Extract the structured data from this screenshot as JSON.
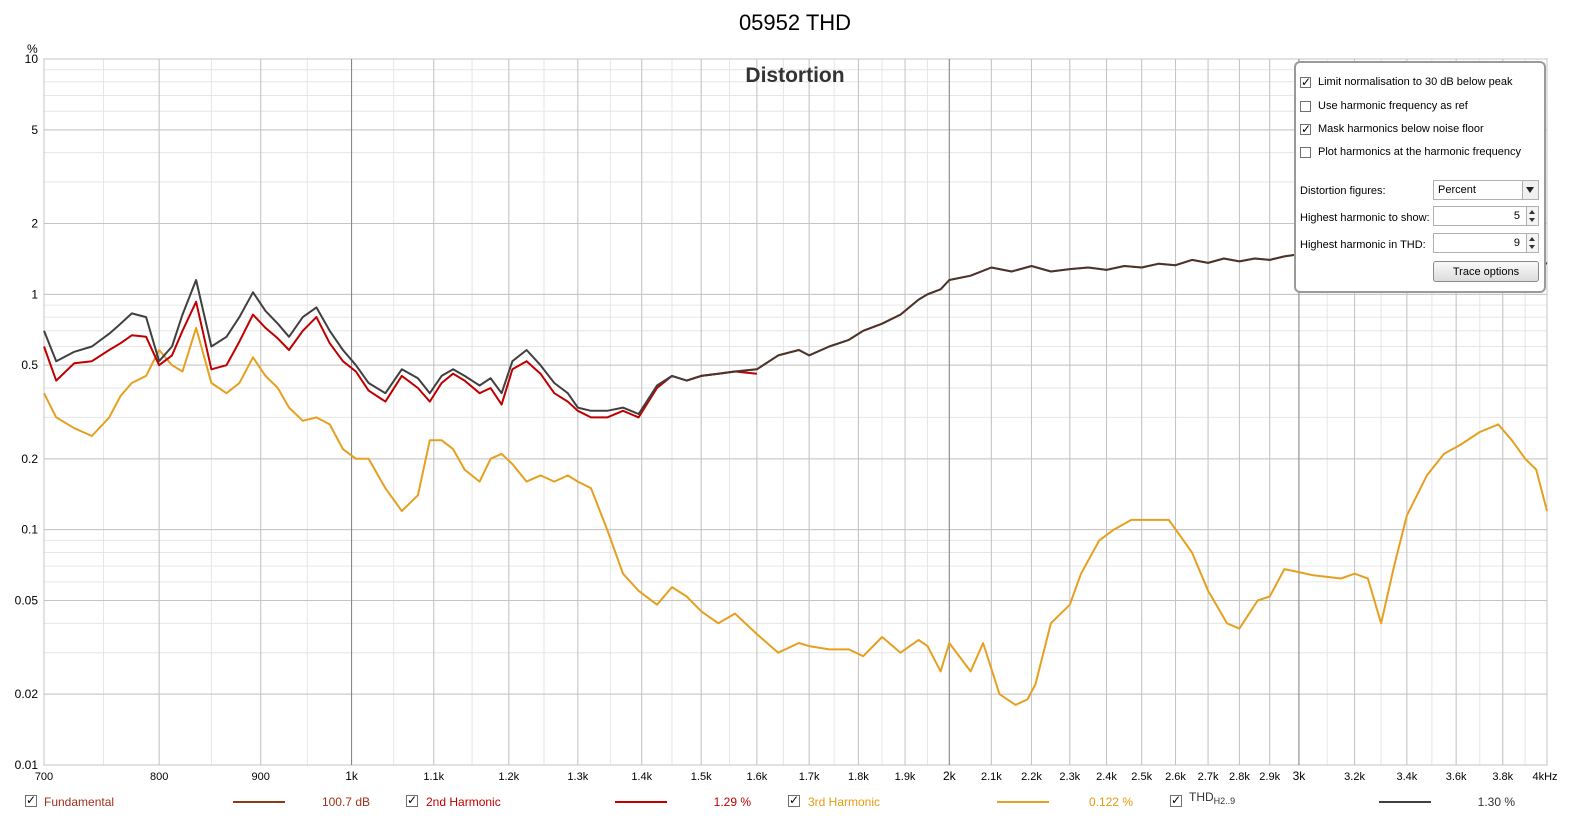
{
  "window_title": "05952 THD",
  "chart_data": {
    "type": "line",
    "title": "Distortion",
    "y_unit": "%",
    "y_scale": "log",
    "ylim": [
      0.01,
      10
    ],
    "y_ticks": [
      10,
      5,
      2,
      1,
      0.5,
      0.2,
      0.1,
      0.05,
      0.02,
      0.01
    ],
    "y_tick_labels": [
      "10",
      "5",
      "2",
      "1",
      "0.5",
      "0.2",
      "0.1",
      "0.05",
      "0.02",
      "0.01"
    ],
    "x_scale": "log",
    "xlim": [
      700,
      4000
    ],
    "x_ticks": [
      700,
      800,
      900,
      1000,
      1100,
      1200,
      1300,
      1400,
      1500,
      1600,
      1700,
      1800,
      1900,
      2000,
      2100,
      2200,
      2300,
      2400,
      2500,
      2600,
      2700,
      2800,
      2900,
      3000,
      3200,
      3400,
      3600,
      3800,
      4000
    ],
    "x_tick_labels": [
      "700",
      "800",
      "900",
      "1k",
      "1.1k",
      "1.2k",
      "1.3k",
      "1.4k",
      "1.5k",
      "1.6k",
      "1.7k",
      "1.8k",
      "1.9k",
      "2k",
      "2.1k",
      "2.2k",
      "2.3k",
      "2.4k",
      "2.5k",
      "2.6k",
      "2.7k",
      "2.8k",
      "2.9k",
      "3k",
      "3.2k",
      "3.4k",
      "3.6k",
      "3.8k",
      "4kHz"
    ],
    "grid": true,
    "series": [
      {
        "name": "3rd Harmonic",
        "color": "#e6a020",
        "x": [
          700,
          710,
          725,
          740,
          755,
          765,
          775,
          788,
          800,
          812,
          822,
          835,
          850,
          865,
          878,
          892,
          905,
          918,
          930,
          945,
          960,
          975,
          990,
          1005,
          1020,
          1040,
          1060,
          1080,
          1095,
          1110,
          1125,
          1140,
          1160,
          1175,
          1190,
          1205,
          1225,
          1245,
          1265,
          1285,
          1300,
          1320,
          1345,
          1370,
          1395,
          1425,
          1450,
          1475,
          1500,
          1530,
          1560,
          1600,
          1640,
          1680,
          1700,
          1740,
          1780,
          1810,
          1850,
          1890,
          1930,
          1950,
          1980,
          2000,
          2050,
          2080,
          2120,
          2160,
          2190,
          2210,
          2250,
          2300,
          2330,
          2380,
          2420,
          2470,
          2520,
          2580,
          2650,
          2700,
          2760,
          2800,
          2860,
          2900,
          2950,
          3000,
          3050,
          3100,
          3150,
          3200,
          3250,
          3300,
          3350,
          3400,
          3480,
          3550,
          3620,
          3700,
          3780,
          3840,
          3900,
          3950,
          4000
        ],
        "values": [
          0.38,
          0.3,
          0.27,
          0.25,
          0.3,
          0.37,
          0.42,
          0.45,
          0.58,
          0.5,
          0.47,
          0.72,
          0.42,
          0.38,
          0.42,
          0.54,
          0.45,
          0.4,
          0.33,
          0.29,
          0.3,
          0.28,
          0.22,
          0.2,
          0.2,
          0.15,
          0.12,
          0.14,
          0.24,
          0.24,
          0.22,
          0.18,
          0.16,
          0.2,
          0.21,
          0.19,
          0.16,
          0.17,
          0.16,
          0.17,
          0.16,
          0.15,
          0.1,
          0.065,
          0.055,
          0.048,
          0.057,
          0.052,
          0.045,
          0.04,
          0.044,
          0.036,
          0.03,
          0.033,
          0.032,
          0.031,
          0.031,
          0.029,
          0.035,
          0.03,
          0.034,
          0.032,
          0.025,
          0.033,
          0.025,
          0.033,
          0.02,
          0.018,
          0.019,
          0.022,
          0.04,
          0.048,
          0.065,
          0.09,
          0.1,
          0.11,
          0.11,
          0.11,
          0.08,
          0.055,
          0.04,
          0.038,
          0.05,
          0.052,
          0.068,
          0.066,
          0.064,
          0.063,
          0.062,
          0.065,
          0.062,
          0.04,
          0.07,
          0.115,
          0.17,
          0.21,
          0.23,
          0.26,
          0.28,
          0.24,
          0.2,
          0.18,
          0.12
        ]
      },
      {
        "name": "2nd Harmonic",
        "color": "#c00000",
        "x": [
          700,
          710,
          725,
          740,
          755,
          765,
          775,
          788,
          800,
          812,
          822,
          835,
          850,
          865,
          878,
          892,
          905,
          918,
          930,
          945,
          960,
          975,
          990,
          1005,
          1020,
          1040,
          1060,
          1080,
          1095,
          1110,
          1125,
          1140,
          1160,
          1175,
          1190,
          1205,
          1225,
          1245,
          1265,
          1285,
          1300,
          1320,
          1345,
          1370,
          1395,
          1425,
          1450,
          1475,
          1500,
          1530,
          1560,
          1600
        ],
        "values": [
          0.6,
          0.43,
          0.51,
          0.52,
          0.58,
          0.62,
          0.67,
          0.66,
          0.5,
          0.55,
          0.7,
          0.93,
          0.48,
          0.5,
          0.63,
          0.82,
          0.72,
          0.65,
          0.58,
          0.7,
          0.8,
          0.62,
          0.52,
          0.47,
          0.39,
          0.35,
          0.45,
          0.4,
          0.35,
          0.42,
          0.46,
          0.43,
          0.38,
          0.4,
          0.34,
          0.48,
          0.52,
          0.46,
          0.38,
          0.35,
          0.32,
          0.3,
          0.3,
          0.32,
          0.3,
          0.4,
          0.45,
          0.43,
          0.45,
          0.46,
          0.47,
          0.46
        ]
      },
      {
        "name": "THD",
        "color": "#404040",
        "x": [
          700,
          710,
          725,
          740,
          755,
          765,
          775,
          788,
          800,
          812,
          822,
          835,
          850,
          865,
          878,
          892,
          905,
          918,
          930,
          945,
          960,
          975,
          990,
          1005,
          1020,
          1040,
          1060,
          1080,
          1095,
          1110,
          1125,
          1140,
          1160,
          1175,
          1190,
          1205,
          1225,
          1245,
          1265,
          1285,
          1300,
          1320,
          1345,
          1370,
          1395,
          1425,
          1450,
          1475,
          1500,
          1530,
          1560,
          1600,
          1640,
          1680,
          1700,
          1740,
          1780,
          1810,
          1850,
          1890,
          1930,
          1950,
          1980,
          2000,
          2050,
          2100,
          2150,
          2200,
          2250,
          2300,
          2350,
          2400,
          2450,
          2500,
          2550,
          2600,
          2650,
          2700,
          2750,
          2800,
          2850,
          2900,
          2950,
          3000,
          3050,
          3100,
          3150,
          3200,
          3250,
          3300,
          3350,
          3400,
          3480,
          3550,
          3620,
          3700,
          3780,
          3840,
          3900,
          3950,
          4000
        ],
        "values": [
          0.7,
          0.52,
          0.57,
          0.6,
          0.68,
          0.75,
          0.83,
          0.8,
          0.52,
          0.6,
          0.82,
          1.15,
          0.6,
          0.66,
          0.8,
          1.02,
          0.85,
          0.75,
          0.66,
          0.8,
          0.88,
          0.7,
          0.58,
          0.5,
          0.42,
          0.38,
          0.48,
          0.44,
          0.38,
          0.45,
          0.48,
          0.45,
          0.41,
          0.44,
          0.38,
          0.52,
          0.58,
          0.5,
          0.42,
          0.38,
          0.33,
          0.32,
          0.32,
          0.33,
          0.31,
          0.41,
          0.45,
          0.43,
          0.45,
          0.46,
          0.47,
          0.48,
          0.55,
          0.58,
          0.55,
          0.6,
          0.64,
          0.7,
          0.75,
          0.82,
          0.95,
          1.0,
          1.05,
          1.15,
          1.2,
          1.3,
          1.25,
          1.32,
          1.25,
          1.28,
          1.3,
          1.27,
          1.32,
          1.3,
          1.35,
          1.33,
          1.4,
          1.36,
          1.42,
          1.38,
          1.42,
          1.4,
          1.45,
          1.48,
          1.45,
          1.5,
          1.48,
          1.55,
          1.5,
          1.6,
          1.55,
          1.5,
          1.55,
          1.5,
          1.45,
          1.48,
          1.52,
          1.5,
          1.45,
          1.4,
          1.35
        ]
      }
    ]
  },
  "options": {
    "limit_normalisation": {
      "label": "Limit normalisation to 30 dB below peak",
      "checked": true
    },
    "use_harmonic_ref": {
      "label": "Use harmonic frequency as ref",
      "checked": false
    },
    "mask_harmonics": {
      "label": "Mask harmonics below noise floor",
      "checked": true
    },
    "plot_at_harmonic": {
      "label": "Plot harmonics at the harmonic frequency",
      "checked": false
    },
    "distortion_figures_label": "Distortion figures:",
    "distortion_figures_value": "Percent",
    "highest_show_label": "Highest harmonic to show:",
    "highest_show_value": "5",
    "highest_thd_label": "Highest harmonic in THD:",
    "highest_thd_value": "9",
    "trace_options_label": "Trace options"
  },
  "legend": [
    {
      "name": "Fundamental",
      "value": "100.7 dB",
      "color": "#8b3a1a",
      "text_color": "#a0301a"
    },
    {
      "name": "2nd Harmonic",
      "value": "1.29 %",
      "color": "#c00000",
      "text_color": "#c00000"
    },
    {
      "name": "3rd Harmonic",
      "value": "0.122 %",
      "color": "#e6a020",
      "text_color": "#e69a10"
    },
    {
      "name": "THD",
      "subscript": "H2..9",
      "value": "1.30 %",
      "color": "#404040",
      "text_color": "#333333"
    }
  ]
}
